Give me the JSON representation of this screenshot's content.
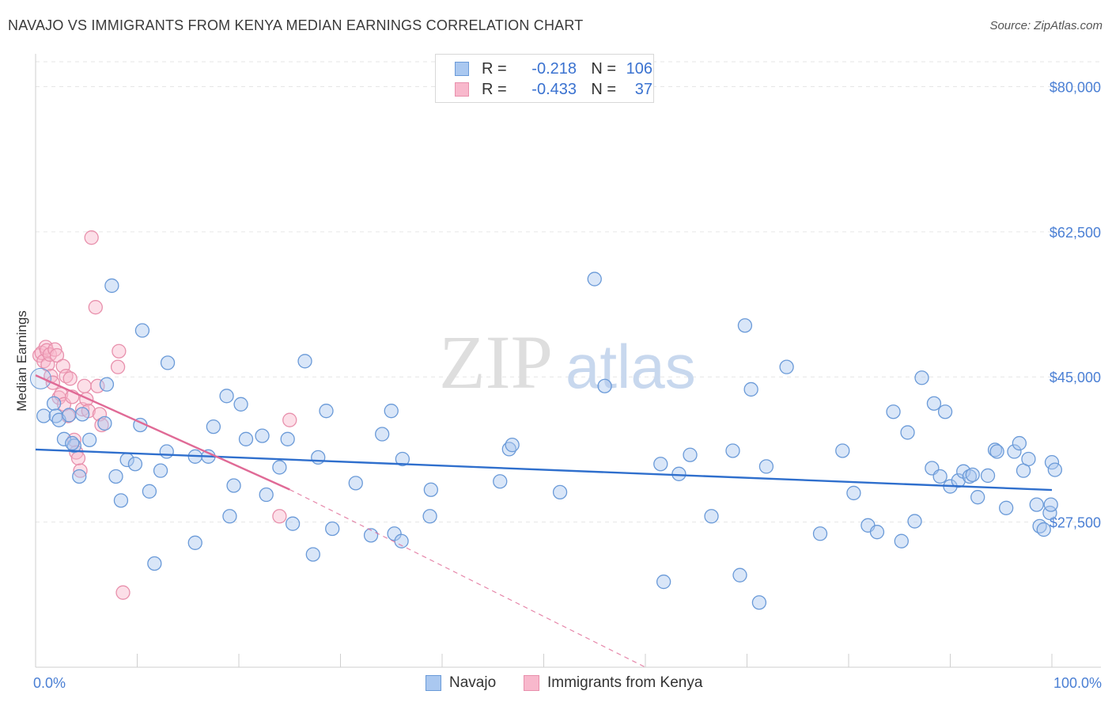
{
  "header": {
    "title": "NAVAJO VS IMMIGRANTS FROM KENYA MEDIAN EARNINGS CORRELATION CHART",
    "source": "Source: ZipAtlas.com"
  },
  "watermark": {
    "zip": "ZIP",
    "atlas": "atlas"
  },
  "legend": {
    "rows": [
      {
        "r_label": "R =",
        "r_value": "-0.218",
        "n_label": "N =",
        "n_value": "106"
      },
      {
        "r_label": "R =",
        "r_value": "-0.433",
        "n_label": "N =",
        "n_value": "37"
      }
    ]
  },
  "colors": {
    "navajo_fill": "#aac8f0",
    "navajo_stroke": "#6a9ad8",
    "navajo_line": "#2f6fcd",
    "kenya_fill": "#f8b8cc",
    "kenya_stroke": "#e890ac",
    "kenya_line": "#e06a96",
    "grid": "#e6e6e6",
    "axis_text": "#4a7fd4"
  },
  "chart_data": {
    "type": "scatter",
    "title": "NAVAJO VS IMMIGRANTS FROM KENYA MEDIAN EARNINGS CORRELATION CHART",
    "xlabel": "",
    "ylabel": "Median Earnings",
    "xlim": [
      0,
      100
    ],
    "ylim": [
      10000,
      83000
    ],
    "x_tick_labels": [
      "0.0%",
      "100.0%"
    ],
    "y_ticks": [
      {
        "value": 27500,
        "label": "$27,500"
      },
      {
        "value": 45000,
        "label": "$45,000"
      },
      {
        "value": 62500,
        "label": "$62,500"
      },
      {
        "value": 80000,
        "label": "$80,000"
      }
    ],
    "grid": true,
    "legend_position": "top-center",
    "series": [
      {
        "name": "Navajo",
        "r": -0.218,
        "n": 106,
        "trend": {
          "x": [
            0,
            100
          ],
          "y": [
            36250,
            31370
          ]
        },
        "points": [
          [
            0.8,
            40300
          ],
          [
            1.8,
            41800
          ],
          [
            2.0,
            40300
          ],
          [
            2.3,
            39800
          ],
          [
            3.3,
            40400
          ],
          [
            2.8,
            37500
          ],
          [
            3.8,
            36700
          ],
          [
            4.3,
            33000
          ],
          [
            3.6,
            37000
          ],
          [
            5.3,
            37400
          ],
          [
            4.6,
            40500
          ],
          [
            6.8,
            39400
          ],
          [
            7.0,
            44100
          ],
          [
            7.5,
            56000
          ],
          [
            7.9,
            33000
          ],
          [
            8.4,
            30100
          ],
          [
            9.0,
            35000
          ],
          [
            9.8,
            34500
          ],
          [
            10.3,
            39200
          ],
          [
            10.5,
            50600
          ],
          [
            11.2,
            31200
          ],
          [
            11.7,
            22500
          ],
          [
            12.3,
            33700
          ],
          [
            12.9,
            36000
          ],
          [
            13.0,
            46700
          ],
          [
            15.7,
            25000
          ],
          [
            15.7,
            35400
          ],
          [
            17.0,
            35400
          ],
          [
            17.5,
            39000
          ],
          [
            18.8,
            42700
          ],
          [
            19.1,
            28200
          ],
          [
            19.5,
            31900
          ],
          [
            20.2,
            41700
          ],
          [
            20.7,
            37500
          ],
          [
            22.3,
            37900
          ],
          [
            22.7,
            30800
          ],
          [
            24.0,
            34100
          ],
          [
            24.8,
            37500
          ],
          [
            25.3,
            27300
          ],
          [
            26.5,
            46900
          ],
          [
            27.3,
            23600
          ],
          [
            27.8,
            35300
          ],
          [
            28.6,
            40900
          ],
          [
            29.2,
            26700
          ],
          [
            31.5,
            32200
          ],
          [
            33.0,
            25900
          ],
          [
            34.1,
            38100
          ],
          [
            35.0,
            40900
          ],
          [
            35.3,
            26100
          ],
          [
            36.0,
            25200
          ],
          [
            36.1,
            35100
          ],
          [
            38.9,
            31400
          ],
          [
            38.8,
            28200
          ],
          [
            45.7,
            32400
          ],
          [
            46.6,
            36300
          ],
          [
            46.9,
            36800
          ],
          [
            51.6,
            31100
          ],
          [
            55.0,
            56800
          ],
          [
            56.0,
            43900
          ],
          [
            61.5,
            34500
          ],
          [
            61.8,
            20300
          ],
          [
            63.3,
            33300
          ],
          [
            64.4,
            35600
          ],
          [
            66.5,
            28200
          ],
          [
            68.6,
            36100
          ],
          [
            69.3,
            21100
          ],
          [
            69.8,
            51200
          ],
          [
            70.4,
            43500
          ],
          [
            71.2,
            17800
          ],
          [
            71.9,
            34200
          ],
          [
            73.9,
            46200
          ],
          [
            77.2,
            26100
          ],
          [
            79.4,
            36100
          ],
          [
            80.5,
            31000
          ],
          [
            81.9,
            27100
          ],
          [
            82.8,
            26300
          ],
          [
            84.4,
            40800
          ],
          [
            85.2,
            25200
          ],
          [
            85.8,
            38300
          ],
          [
            86.5,
            27600
          ],
          [
            87.2,
            44900
          ],
          [
            88.2,
            34000
          ],
          [
            88.4,
            41800
          ],
          [
            89.0,
            33000
          ],
          [
            89.5,
            40800
          ],
          [
            90.0,
            31800
          ],
          [
            90.8,
            32500
          ],
          [
            91.3,
            33600
          ],
          [
            91.9,
            33000
          ],
          [
            92.2,
            33200
          ],
          [
            92.7,
            30500
          ],
          [
            93.7,
            33100
          ],
          [
            94.4,
            36200
          ],
          [
            94.6,
            36000
          ],
          [
            95.5,
            29200
          ],
          [
            96.3,
            36000
          ],
          [
            96.8,
            37000
          ],
          [
            97.2,
            33700
          ],
          [
            97.7,
            35100
          ],
          [
            98.5,
            29600
          ],
          [
            98.8,
            27000
          ],
          [
            99.2,
            26600
          ],
          [
            99.8,
            28600
          ],
          [
            99.9,
            29600
          ],
          [
            100.0,
            34700
          ],
          [
            100.3,
            33800
          ]
        ]
      },
      {
        "name": "Immigrants from Kenya",
        "r": -0.433,
        "n": 37,
        "trend": {
          "x": [
            0,
            25
          ],
          "y": [
            45200,
            31420
          ]
        },
        "trend_extension": {
          "x": [
            25,
            60
          ],
          "y": [
            31420,
            10000
          ]
        },
        "points": [
          [
            0.4,
            47600
          ],
          [
            0.6,
            47900
          ],
          [
            0.8,
            46900
          ],
          [
            1.0,
            48600
          ],
          [
            1.1,
            48200
          ],
          [
            1.2,
            46500
          ],
          [
            1.4,
            47700
          ],
          [
            1.5,
            45100
          ],
          [
            1.7,
            44300
          ],
          [
            1.9,
            48300
          ],
          [
            2.1,
            47600
          ],
          [
            2.3,
            42500
          ],
          [
            2.5,
            42900
          ],
          [
            2.7,
            46300
          ],
          [
            2.8,
            41700
          ],
          [
            3.0,
            45100
          ],
          [
            3.2,
            40300
          ],
          [
            3.4,
            44800
          ],
          [
            3.6,
            42600
          ],
          [
            3.8,
            37400
          ],
          [
            4.0,
            35900
          ],
          [
            4.2,
            35200
          ],
          [
            4.4,
            33700
          ],
          [
            4.6,
            41100
          ],
          [
            4.8,
            43900
          ],
          [
            5.0,
            42300
          ],
          [
            5.2,
            40900
          ],
          [
            5.5,
            61800
          ],
          [
            5.9,
            53400
          ],
          [
            6.1,
            43900
          ],
          [
            6.3,
            40500
          ],
          [
            6.5,
            39200
          ],
          [
            8.1,
            46200
          ],
          [
            8.2,
            48100
          ],
          [
            8.6,
            19000
          ],
          [
            25.0,
            39800
          ],
          [
            24.0,
            28200
          ]
        ]
      }
    ]
  },
  "bottom_legend": {
    "navajo": "Navajo",
    "kenya": "Immigrants from Kenya"
  }
}
